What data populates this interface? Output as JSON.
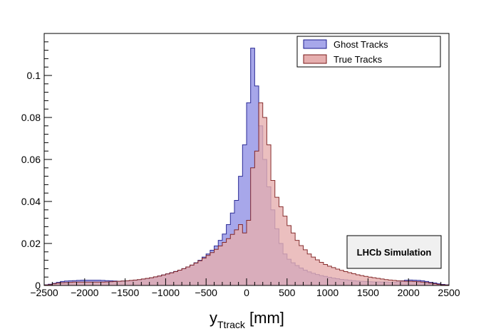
{
  "chart_data": {
    "type": "histogram",
    "title": "",
    "xlabel_main": "y",
    "xlabel_sub": "Ttrack",
    "xlabel_unit": " [mm]",
    "ylabel": "",
    "xlim": [
      -2500,
      2500
    ],
    "ylim": [
      0,
      0.12
    ],
    "grid": false,
    "legend_position": "top-right",
    "x_ticks": [
      -2500,
      -2000,
      -1500,
      -1000,
      -500,
      0,
      500,
      1000,
      1500,
      2000,
      2500
    ],
    "x_tick_labels": [
      "−2500",
      "−2000",
      "−1500",
      "−1000",
      "−500",
      "0",
      "500",
      "1000",
      "1500",
      "2000",
      "2500"
    ],
    "y_ticks": [
      0,
      0.02,
      0.04,
      0.06,
      0.08,
      0.1
    ],
    "y_tick_labels": [
      "0",
      "0.02",
      "0.04",
      "0.06",
      "0.08",
      "0.1"
    ],
    "bin_edges_start": -2500,
    "bin_width": 50,
    "series": [
      {
        "name": "Ghost Tracks",
        "fill": "#a7a7ea",
        "stroke": "#1a1a8c",
        "values": [
          0.0003,
          0.0006,
          0.001,
          0.0015,
          0.0019,
          0.0021,
          0.0022,
          0.0023,
          0.0024,
          0.0025,
          0.0025,
          0.0025,
          0.0025,
          0.0025,
          0.0024,
          0.0023,
          0.0022,
          0.0021,
          0.002,
          0.0021,
          0.0022,
          0.0023,
          0.0025,
          0.0027,
          0.003,
          0.0032,
          0.0036,
          0.004,
          0.0045,
          0.005,
          0.0055,
          0.0061,
          0.0067,
          0.0073,
          0.008,
          0.0088,
          0.0097,
          0.0108,
          0.012,
          0.0135,
          0.015,
          0.0168,
          0.0188,
          0.0215,
          0.0245,
          0.029,
          0.0345,
          0.0405,
          0.052,
          0.067,
          0.087,
          0.113,
          0.095,
          0.076,
          0.06,
          0.047,
          0.036,
          0.027,
          0.02,
          0.015,
          0.0125,
          0.0108,
          0.0095,
          0.0083,
          0.0073,
          0.0065,
          0.0058,
          0.0052,
          0.0047,
          0.0043,
          0.0039,
          0.0035,
          0.0032,
          0.0029,
          0.0027,
          0.0025,
          0.0023,
          0.0021,
          0.002,
          0.0019,
          0.0018,
          0.0017,
          0.0017,
          0.0016,
          0.0016,
          0.0015,
          0.0015,
          0.0018,
          0.0022,
          0.0025,
          0.0026,
          0.0025,
          0.0024,
          0.0022,
          0.0019,
          0.0015,
          0.0012,
          0.0008,
          0.0005,
          0.0003
        ]
      },
      {
        "name": "True Tracks",
        "fill": "#e6afaf",
        "stroke": "#7a1a1a",
        "values": [
          0.0002,
          0.0004,
          0.0008,
          0.0011,
          0.0013,
          0.0014,
          0.0015,
          0.0016,
          0.0016,
          0.0016,
          0.0016,
          0.0016,
          0.0016,
          0.0016,
          0.0016,
          0.0017,
          0.0018,
          0.0019,
          0.002,
          0.0021,
          0.0022,
          0.0024,
          0.0026,
          0.0028,
          0.0031,
          0.0034,
          0.0037,
          0.0041,
          0.0045,
          0.005,
          0.0055,
          0.006,
          0.0066,
          0.0073,
          0.008,
          0.0088,
          0.0097,
          0.0107,
          0.0118,
          0.013,
          0.0143,
          0.0157,
          0.0172,
          0.0188,
          0.0205,
          0.0223,
          0.0243,
          0.0265,
          0.029,
          0.025,
          0.031,
          0.056,
          0.064,
          0.087,
          0.08,
          0.067,
          0.05,
          0.042,
          0.0375,
          0.033,
          0.0285,
          0.025,
          0.0215,
          0.019,
          0.017,
          0.015,
          0.0135,
          0.0122,
          0.011,
          0.01,
          0.0092,
          0.0085,
          0.0078,
          0.0072,
          0.0066,
          0.0061,
          0.0056,
          0.0051,
          0.0047,
          0.0043,
          0.004,
          0.0037,
          0.0034,
          0.0031,
          0.0028,
          0.0026,
          0.0024,
          0.0022,
          0.0021,
          0.002,
          0.002,
          0.0019,
          0.0018,
          0.0016,
          0.0014,
          0.0011,
          0.0008,
          0.0005,
          0.0003,
          0.0002
        ]
      }
    ]
  },
  "legend": {
    "items": [
      {
        "label": "Ghost Tracks",
        "fill": "#a7a7ea",
        "stroke": "#1a1a8c"
      },
      {
        "label": "True Tracks",
        "fill": "#e6afaf",
        "stroke": "#7a1a1a"
      }
    ]
  },
  "badge": {
    "label": "LHCb Simulation"
  }
}
